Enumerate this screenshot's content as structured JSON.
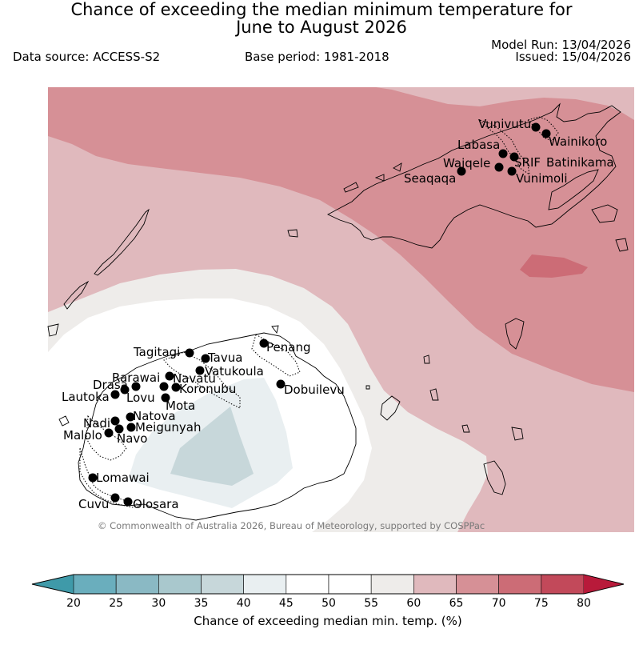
{
  "header": {
    "title_line1": "Chance of exceeding the median minimum temperature for",
    "title_line2": "June to August 2026",
    "data_source": "Data source: ACCESS-S2",
    "base_period": "Base period: 1981-2018",
    "model_run": "Model Run: 13/04/2026",
    "issued": "Issued: 15/04/2026"
  },
  "map": {
    "copyright": "© Commonwealth of Australia 2026, Bureau of Meteorology, supported by COSPPac",
    "stations": [
      "Vunivutu",
      "Wainikoro",
      "Labasa",
      "Waiqele",
      "SRIF",
      "Batinikama",
      "Seaqaqa",
      "Vunimoli",
      "Penang",
      "Tagitagi",
      "Tavua",
      "Vatukoula",
      "Rarawai",
      "Navatu",
      "Drasa",
      "Lautoka",
      "Lovu",
      "Koronubu",
      "Mota",
      "Dobuilevu",
      "Natova",
      "Nadi",
      "Meigunyah",
      "Malolo",
      "Navo",
      "Lomawai",
      "Cuvu",
      "Olosara"
    ]
  },
  "colorbar": {
    "label": "Chance of exceeding median min. temp. (%)",
    "ticks": [
      "20",
      "25",
      "30",
      "35",
      "40",
      "45",
      "50",
      "55",
      "60",
      "65",
      "70",
      "75",
      "80"
    ],
    "colors": {
      "below_20": "#3f9aa9",
      "c20_25": "#6aaebd",
      "c25_30": "#8ab9c4",
      "c30_35": "#a9c8cd",
      "c35_40": "#c7d7da",
      "c40_45": "#e9eff1",
      "c45_50": "#ffffff",
      "c50_55": "#ffffff",
      "c55_60": "#eeecea",
      "c60_65": "#e0b9bd",
      "c65_70": "#d69096",
      "c70_75": "#cc6c76",
      "c75_80": "#c2495a",
      "above_80": "#b81a3a"
    }
  }
}
